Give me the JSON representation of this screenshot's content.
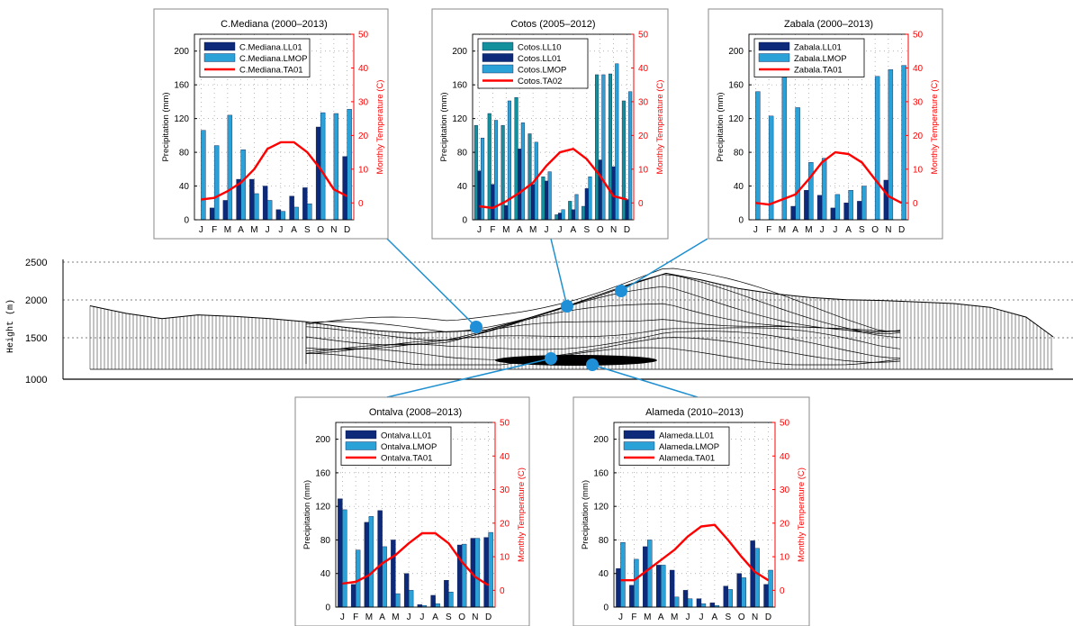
{
  "colors": {
    "ll01": "#0d2a7a",
    "lmop": "#2aa2d8",
    "ll10": "#14909c",
    "temp": "#ff0000",
    "connector": "#1e8fd0",
    "marker": "#1f90d8"
  },
  "profile": {
    "ylabel": "Height (m)",
    "ticks": [
      "2500",
      "2000",
      "1500",
      "1000"
    ]
  },
  "months": [
    "J",
    "F",
    "M",
    "A",
    "M",
    "J",
    "J",
    "A",
    "S",
    "O",
    "N",
    "D"
  ],
  "chart_data": [
    {
      "type": "bar",
      "title": "C.Mediana (2000–2013)",
      "ylabel": "Precipitation (mm)",
      "y2label": "Monthly Temperature (C)",
      "ylim": [
        0,
        220
      ],
      "y2lim": [
        -5,
        50
      ],
      "yticks": [
        "0",
        "40",
        "80",
        "120",
        "160",
        "200"
      ],
      "y2ticks": [
        "0",
        "10",
        "20",
        "30",
        "40",
        "50"
      ],
      "legend_position": "top-left",
      "series": [
        {
          "name": "C.Mediana.LL01",
          "color_key": "ll01",
          "values": [
            0,
            14,
            23,
            48,
            48,
            40,
            12,
            28,
            38,
            110,
            0,
            75
          ]
        },
        {
          "name": "C.Mediana.LMOP",
          "color_key": "lmop",
          "values": [
            106,
            88,
            124,
            83,
            31,
            23,
            10,
            15,
            19,
            127,
            126,
            131
          ]
        }
      ],
      "temperature": {
        "name": "C.Mediana.TA01",
        "values": [
          1,
          1.5,
          3.5,
          6,
          10,
          16,
          18,
          18,
          15,
          10,
          4,
          2
        ]
      }
    },
    {
      "type": "bar",
      "title": "Cotos (2005–2012)",
      "ylabel": "Precipitation (mm)",
      "y2label": "Monthly Temperature (C)",
      "ylim": [
        0,
        220
      ],
      "y2lim": [
        -5,
        50
      ],
      "yticks": [
        "0",
        "40",
        "80",
        "120",
        "160",
        "200"
      ],
      "y2ticks": [
        "0",
        "10",
        "20",
        "30",
        "40",
        "50"
      ],
      "legend_position": "top-left",
      "series": [
        {
          "name": "Cotos.LL10",
          "color_key": "ll10",
          "values": [
            112,
            126,
            112,
            145,
            102,
            51,
            6,
            22,
            16,
            172,
            173,
            141
          ]
        },
        {
          "name": "Cotos.LL01",
          "color_key": "ll01",
          "values": [
            58,
            42,
            17,
            84,
            42,
            46,
            8,
            12,
            37,
            71,
            63,
            24
          ]
        },
        {
          "name": "Cotos.LMOP",
          "color_key": "lmop",
          "values": [
            97,
            118,
            141,
            115,
            92,
            57,
            12,
            30,
            51,
            172,
            185,
            152
          ]
        }
      ],
      "temperature": {
        "name": "Cotos.TA02",
        "values": [
          -1,
          -1.5,
          0.5,
          3,
          6,
          11,
          15,
          16,
          13,
          8,
          2,
          1
        ]
      }
    },
    {
      "type": "bar",
      "title": "Zabala (2000–2013)",
      "ylabel": "Precipitation (mm)",
      "y2label": "Monthly Temperature (C)",
      "ylim": [
        0,
        220
      ],
      "y2lim": [
        -5,
        50
      ],
      "yticks": [
        "0",
        "40",
        "80",
        "120",
        "160",
        "200"
      ],
      "y2ticks": [
        "0",
        "10",
        "20",
        "30",
        "40",
        "50"
      ],
      "legend_position": "top-left",
      "series": [
        {
          "name": "Zabala.LL01",
          "color_key": "ll01",
          "values": [
            0,
            0,
            0,
            16,
            35,
            29,
            14,
            20,
            22,
            0,
            47,
            0
          ]
        },
        {
          "name": "Zabala.LMOP",
          "color_key": "lmop",
          "values": [
            152,
            123,
            170,
            133,
            68,
            73,
            30,
            35,
            40,
            170,
            178,
            183
          ]
        }
      ],
      "temperature": {
        "name": "Zabala.TA01",
        "values": [
          0,
          -0.5,
          1,
          2.5,
          7,
          12,
          15,
          14.5,
          12,
          7,
          2,
          0
        ]
      }
    },
    {
      "type": "bar",
      "title": "Ontalva (2008–2013)",
      "ylabel": "Precipitation (mm)",
      "y2label": "Monthly Temperature (C)",
      "ylim": [
        0,
        220
      ],
      "y2lim": [
        -5,
        50
      ],
      "yticks": [
        "0",
        "40",
        "80",
        "120",
        "160",
        "200"
      ],
      "y2ticks": [
        "0",
        "10",
        "20",
        "30",
        "40",
        "50"
      ],
      "legend_position": "top-left",
      "series": [
        {
          "name": "Ontalva.LL01",
          "color_key": "ll01",
          "values": [
            129,
            27,
            101,
            115,
            80,
            40,
            3,
            14,
            32,
            74,
            82,
            83
          ]
        },
        {
          "name": "Ontalva.LMOP",
          "color_key": "lmop",
          "values": [
            116,
            68,
            108,
            72,
            16,
            20,
            2,
            4,
            18,
            75,
            82,
            89
          ]
        }
      ],
      "temperature": {
        "name": "Ontalva.TA01",
        "values": [
          2,
          2.5,
          4.5,
          8,
          10.5,
          14,
          17,
          17,
          14,
          8.5,
          4,
          1.5
        ]
      }
    },
    {
      "type": "bar",
      "title": "Alameda (2010–2013)",
      "ylabel": "Precipitation (mm)",
      "y2label": "Monthly Temperature (C)",
      "ylim": [
        0,
        220
      ],
      "y2lim": [
        -5,
        50
      ],
      "yticks": [
        "0",
        "40",
        "80",
        "120",
        "160",
        "200"
      ],
      "y2ticks": [
        "0",
        "10",
        "20",
        "30",
        "40",
        "50"
      ],
      "legend_position": "top-left",
      "series": [
        {
          "name": "Alameda.LL01",
          "color_key": "ll01",
          "values": [
            46,
            26,
            72,
            50,
            44,
            20,
            10,
            5,
            25,
            40,
            79,
            27
          ]
        },
        {
          "name": "Alameda.LMOP",
          "color_key": "lmop",
          "values": [
            77,
            57,
            80,
            50,
            12,
            10,
            4,
            2,
            21,
            35,
            70,
            44
          ]
        }
      ],
      "temperature": {
        "name": "Alameda.TA01",
        "values": [
          3,
          3,
          6,
          9,
          12,
          16,
          19,
          19.5,
          15,
          10,
          5.5,
          3
        ]
      }
    }
  ]
}
